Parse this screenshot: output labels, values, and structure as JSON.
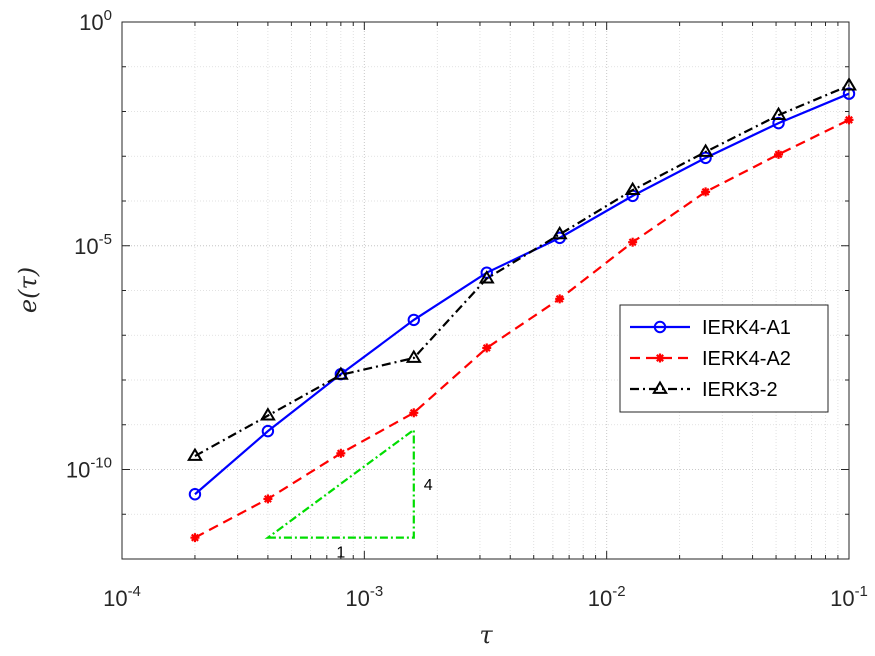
{
  "chart_data": {
    "type": "line",
    "xlabel": "τ",
    "ylabel": "e(τ)",
    "xscale": "log",
    "yscale": "log",
    "xlim": [
      0.0001,
      0.1
    ],
    "ylim": [
      1e-12,
      1
    ],
    "grid": true,
    "legend_position": "right",
    "x_ticks": [
      {
        "base": "10",
        "exp": "-4"
      },
      {
        "base": "10",
        "exp": "-3"
      },
      {
        "base": "10",
        "exp": "-2"
      },
      {
        "base": "10",
        "exp": "-1"
      }
    ],
    "y_ticks": [
      {
        "base": "10",
        "exp": "-10"
      },
      {
        "base": "10",
        "exp": "-5"
      },
      {
        "base": "10",
        "exp": "0"
      }
    ],
    "x": [
      0.0002,
      0.0004,
      0.0008,
      0.0016,
      0.0032,
      0.0064,
      0.0128,
      0.0256,
      0.0512,
      0.1
    ],
    "series": [
      {
        "name": "IERK4-A1",
        "color": "#0000ff",
        "line": "solid",
        "marker": "circle",
        "values": [
          2.8e-11,
          7.2e-10,
          1.35e-08,
          2.2e-07,
          2.5e-06,
          1.5e-05,
          0.00013,
          0.00092,
          0.0055,
          0.025
        ]
      },
      {
        "name": "IERK4-A2",
        "color": "#ff0000",
        "line": "dashed",
        "marker": "asterisk",
        "values": [
          3e-12,
          2.2e-11,
          2.3e-10,
          1.85e-09,
          5.2e-08,
          6.5e-07,
          1.2e-05,
          0.00016,
          0.0011,
          0.0065
        ]
      },
      {
        "name": "IERK3-2",
        "color": "#000000",
        "line": "dashdot",
        "marker": "triangle",
        "values": [
          2e-10,
          1.6e-09,
          1.3e-08,
          3.1e-08,
          1.85e-06,
          1.8e-05,
          0.000175,
          0.00125,
          0.0083,
          0.038
        ]
      }
    ],
    "slope_triangle": {
      "color": "#00dd00",
      "x_from": 0.0004,
      "x_to": 0.0016,
      "y_base": 3e-12,
      "order": 4,
      "horizontal_label": "1",
      "vertical_label": "4"
    }
  }
}
